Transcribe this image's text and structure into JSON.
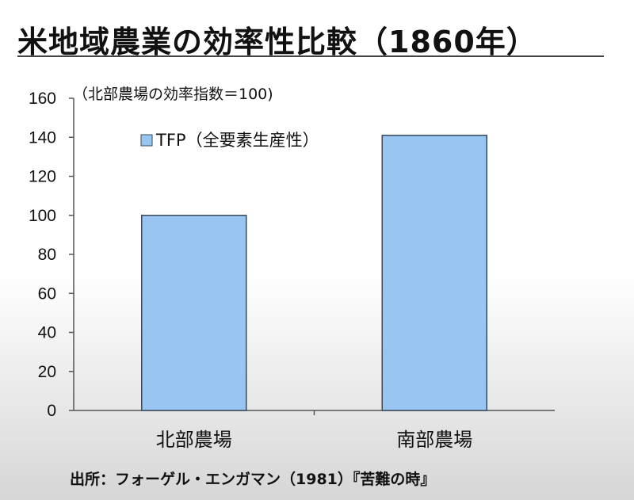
{
  "title": "米地域農業の効率性比較（1860年）",
  "note": "（北部農場の効率指数＝100)",
  "source": "出所：フォーゲル・エンガマン（1981）『苦難の時』",
  "chart_data": {
    "type": "bar",
    "categories": [
      "北部農場",
      "南部農場"
    ],
    "series": [
      {
        "name": "TFP（全要素生産性）",
        "values": [
          100,
          141
        ]
      }
    ],
    "ylim": [
      0,
      160
    ],
    "yticks": [
      0,
      20,
      40,
      60,
      80,
      100,
      120,
      140,
      160
    ],
    "grid": false,
    "legend": "top-center",
    "bar_color": "#99c5f3",
    "bar_border": "#3a4a5a"
  }
}
